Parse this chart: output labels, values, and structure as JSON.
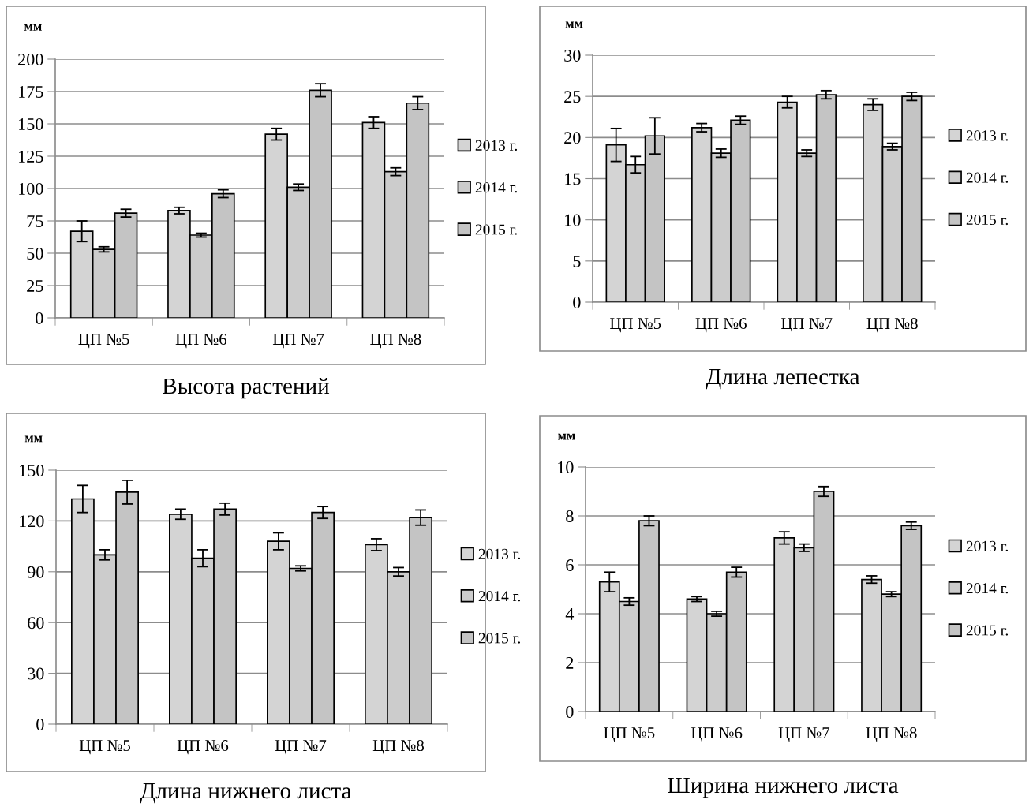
{
  "chart_data": [
    {
      "type": "bar",
      "title": "Высота растений",
      "ylabel": "мм",
      "categories": [
        "ЦП №5",
        "ЦП №6",
        "ЦП №7",
        "ЦП №8"
      ],
      "ylim": [
        0,
        200
      ],
      "yticks": [
        0,
        25,
        50,
        75,
        100,
        125,
        150,
        175,
        200
      ],
      "grid": "y",
      "legend": "right",
      "series": [
        {
          "name": "2013 г.",
          "color": "#d4d4d4",
          "values": [
            67,
            83,
            142,
            151
          ],
          "errors": [
            8,
            2.5,
            4.5,
            4.5
          ]
        },
        {
          "name": "2014 г.",
          "color": "#cccccc",
          "values": [
            53,
            64,
            101,
            113
          ],
          "errors": [
            2,
            1.5,
            2.5,
            3
          ]
        },
        {
          "name": "2015 г.",
          "color": "#c4c4c4",
          "values": [
            81,
            96,
            176,
            166
          ],
          "errors": [
            3,
            3,
            5,
            5
          ]
        }
      ]
    },
    {
      "type": "bar",
      "title": "Длина лепестка",
      "ylabel": "мм",
      "categories": [
        "ЦП №5",
        "ЦП №6",
        "ЦП №7",
        "ЦП №8"
      ],
      "ylim": [
        0,
        30
      ],
      "yticks": [
        0,
        5,
        10,
        15,
        20,
        25,
        30
      ],
      "grid": "y",
      "legend": "right",
      "series": [
        {
          "name": "2013 г.",
          "color": "#d4d4d4",
          "values": [
            19.1,
            21.2,
            24.3,
            24.0
          ],
          "errors": [
            2,
            0.5,
            0.7,
            0.7
          ]
        },
        {
          "name": "2014 г.",
          "color": "#cccccc",
          "values": [
            16.7,
            18.1,
            18.1,
            18.9
          ],
          "errors": [
            1,
            0.5,
            0.4,
            0.4
          ]
        },
        {
          "name": "2015 г.",
          "color": "#c4c4c4",
          "values": [
            20.2,
            22.1,
            25.2,
            25.0
          ],
          "errors": [
            2.2,
            0.5,
            0.5,
            0.5
          ]
        }
      ]
    },
    {
      "type": "bar",
      "title": "Длина нижнего листа",
      "ylabel": "мм",
      "categories": [
        "ЦП №5",
        "ЦП №6",
        "ЦП №7",
        "ЦП №8"
      ],
      "ylim": [
        0,
        150
      ],
      "yticks": [
        0,
        30,
        60,
        90,
        120,
        150
      ],
      "grid": "y",
      "legend": "right",
      "series": [
        {
          "name": "2013 г.",
          "color": "#d4d4d4",
          "values": [
            133,
            124,
            108,
            106
          ],
          "errors": [
            8,
            3,
            5,
            3.5
          ]
        },
        {
          "name": "2014 г.",
          "color": "#cccccc",
          "values": [
            100,
            98,
            92,
            90
          ],
          "errors": [
            3,
            5,
            1.5,
            2.5
          ]
        },
        {
          "name": "2015 г.",
          "color": "#c4c4c4",
          "values": [
            137,
            127,
            125,
            122
          ],
          "errors": [
            7,
            3.5,
            3.5,
            4.5
          ]
        }
      ]
    },
    {
      "type": "bar",
      "title": "Ширина нижнего листа",
      "ylabel": "мм",
      "categories": [
        "ЦП №5",
        "ЦП №6",
        "ЦП №7",
        "ЦП №8"
      ],
      "ylim": [
        0,
        10
      ],
      "yticks": [
        0,
        2,
        4,
        6,
        8,
        10
      ],
      "grid": "y",
      "legend": "right",
      "series": [
        {
          "name": "2013 г.",
          "color": "#d4d4d4",
          "values": [
            5.3,
            4.6,
            7.1,
            5.4
          ],
          "errors": [
            0.4,
            0.1,
            0.25,
            0.15
          ]
        },
        {
          "name": "2014 г.",
          "color": "#cccccc",
          "values": [
            4.5,
            4.0,
            6.7,
            4.8
          ],
          "errors": [
            0.15,
            0.1,
            0.15,
            0.1
          ]
        },
        {
          "name": "2015 г.",
          "color": "#c4c4c4",
          "values": [
            7.8,
            5.7,
            9.0,
            7.6
          ],
          "errors": [
            0.2,
            0.2,
            0.2,
            0.15
          ]
        }
      ]
    }
  ]
}
